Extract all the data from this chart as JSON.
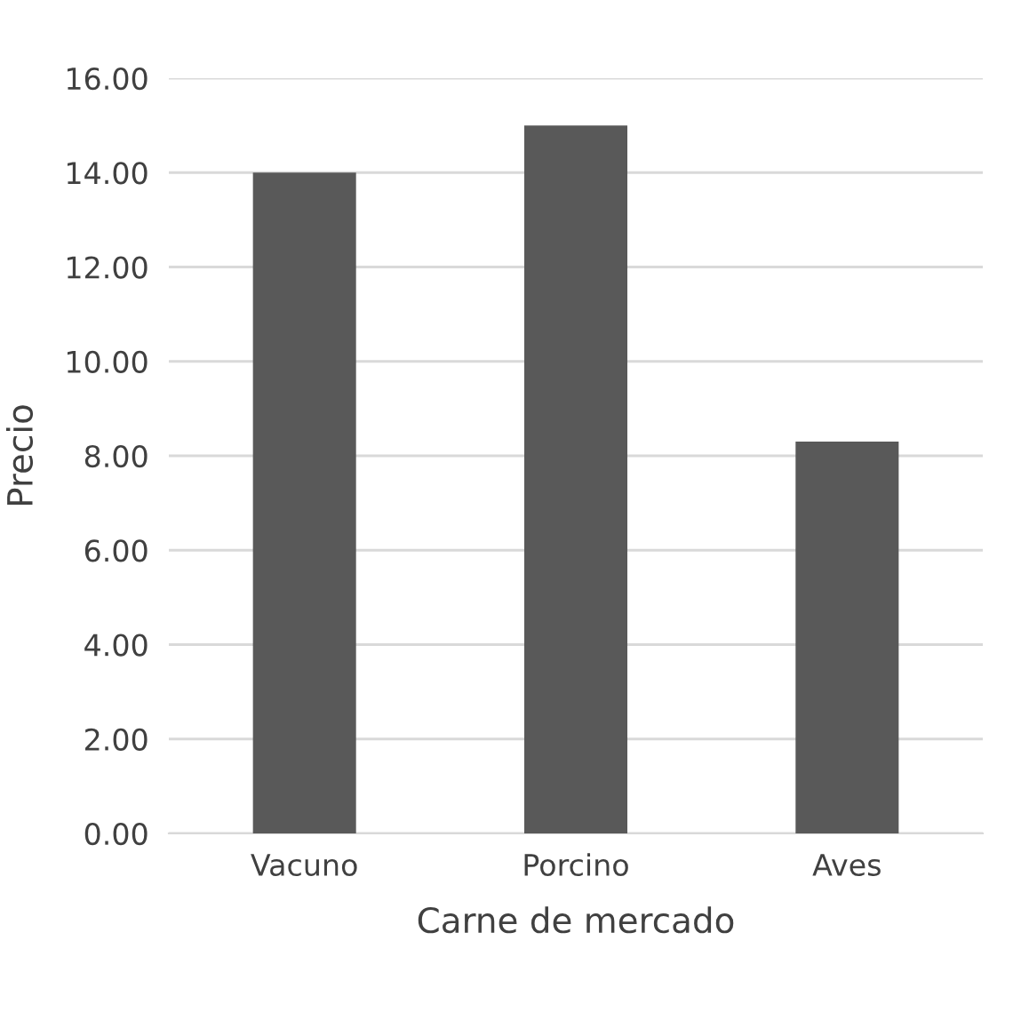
{
  "chart_data": {
    "type": "bar",
    "xlabel": "Carne de mercado",
    "ylabel": "Precio",
    "categories": [
      "Vacuno",
      "Porcino",
      "Aves"
    ],
    "values": [
      14,
      15,
      8.3
    ],
    "color": "#595959",
    "ylim": [
      0,
      16
    ],
    "yticks": [
      {
        "value": 0,
        "label": "0.00"
      },
      {
        "value": 2,
        "label": "2.00"
      },
      {
        "value": 4,
        "label": "4.00"
      },
      {
        "value": 6,
        "label": "6.00"
      },
      {
        "value": 8,
        "label": "8.00"
      },
      {
        "value": 10,
        "label": "10.00"
      },
      {
        "value": 12,
        "label": "12.00"
      },
      {
        "value": 14,
        "label": "14.00"
      },
      {
        "value": 16,
        "label": "16.00"
      }
    ],
    "grid": "y",
    "legend": false
  }
}
